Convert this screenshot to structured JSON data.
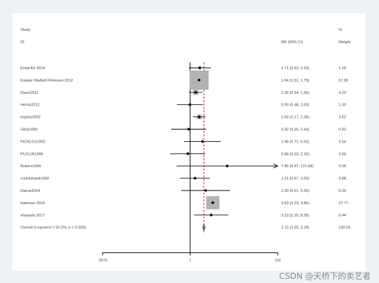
{
  "chart_data": {
    "type": "forest",
    "headers": {
      "study_line1": "Study",
      "study_line2": "ID",
      "rr": "RR (95% CI)",
      "pct_line1": "%",
      "pct_line2": "Weight"
    },
    "studies": [
      {
        "label": "Erdal AS 2014",
        "rr": 1.71,
        "lo": 0.93,
        "hi": 3.15,
        "ci": "1.71 (0.93, 3.15)",
        "weight": "1.29",
        "w": 1.29
      },
      {
        "label": "Kasper Madlahl Petersen 2012",
        "rr": 1.64,
        "lo": 1.51,
        "hi": 1.79,
        "ci": "1.64 (1.51, 1.79)",
        "weight": "57.95",
        "w": 57.95
      },
      {
        "label": "Davis2011",
        "rr": 1.36,
        "lo": 0.94,
        "hi": 1.96,
        "ci": "1.36 (0.94, 1.96)",
        "weight": "4.23",
        "w": 4.23
      },
      {
        "label": "Horda2012",
        "rr": 0.99,
        "lo": 0.48,
        "hi": 2.03,
        "ci": "0.99 (0.48, 2.03)",
        "weight": "1.30",
        "w": 1.3
      },
      {
        "label": "bayliss2002",
        "rr": 1.66,
        "lo": 1.17,
        "hi": 2.36,
        "ci": "1.66 (1.17, 2.36)",
        "weight": "3.52",
        "w": 3.52
      },
      {
        "label": "Sibai1990",
        "rr": 0.92,
        "lo": 0.35,
        "hi": 2.44,
        "ci": "0.92 (0.35, 2.44)",
        "weight": "0.83",
        "w": 0.83
      },
      {
        "label": "PICKLES1992",
        "rr": 1.98,
        "lo": 0.71,
        "hi": 5.52,
        "ci": "1.98 (0.71, 5.52)",
        "weight": "0.54",
        "w": 0.54
      },
      {
        "label": "PUCLIN1996",
        "rr": 0.88,
        "lo": 0.33,
        "hi": 2.3,
        "ci": "0.88 (0.33, 2.30)",
        "weight": "0.86",
        "w": 0.86
      },
      {
        "label": "Butters1990",
        "rr": 7.86,
        "lo": 0.47,
        "hi": 131.58,
        "ci": "7.86 (0.47, 131.58)",
        "weight": "0.06",
        "w": 0.06,
        "arrow": true
      },
      {
        "label": "cruickshank1992",
        "rr": 1.31,
        "lo": 0.57,
        "hi": 3.02,
        "ci": "1.31 (0.57, 3.02)",
        "weight": "0.88",
        "w": 0.88
      },
      {
        "label": "Darcie2004",
        "rr": 2.39,
        "lo": 0.61,
        "hi": 9.26,
        "ci": "2.39 (0.61, 9.26)",
        "weight": "0.33",
        "w": 0.33
      },
      {
        "label": "bateman 2016",
        "rr": 3.53,
        "lo": 3.23,
        "hi": 3.86,
        "ci": "3.53 (3.23, 3.86)",
        "weight": "27.77",
        "w": 27.77
      },
      {
        "label": "ehrbashi 2017",
        "rr": 3.23,
        "lo": 1.25,
        "hi": 8.35,
        "ci": "3.23 (1.25, 8.35)",
        "weight": "0.44",
        "w": 0.44
      }
    ],
    "overall": {
      "label": "Overall  (I-squared = 93.2%, p = 0.000)",
      "rr": 2.15,
      "lo": 2.03,
      "hi": 2.28,
      "ci": "2.15 (2.03, 2.28)",
      "weight": "100.00"
    },
    "x_scale": "log",
    "x_ticks": [
      {
        "value": 0.0076,
        "label": ".0076"
      },
      {
        "value": 1,
        "label": "1"
      },
      {
        "value": 132,
        "label": "132"
      }
    ],
    "xlim": [
      0.0076,
      132
    ],
    "null_line": 1,
    "colors": {
      "box": "#b3b3b3",
      "ci": "#000000",
      "overall_line": "#b22222",
      "diamond": "#1f2f8a"
    }
  },
  "watermark": "CSDN @天桥下的卖艺者"
}
